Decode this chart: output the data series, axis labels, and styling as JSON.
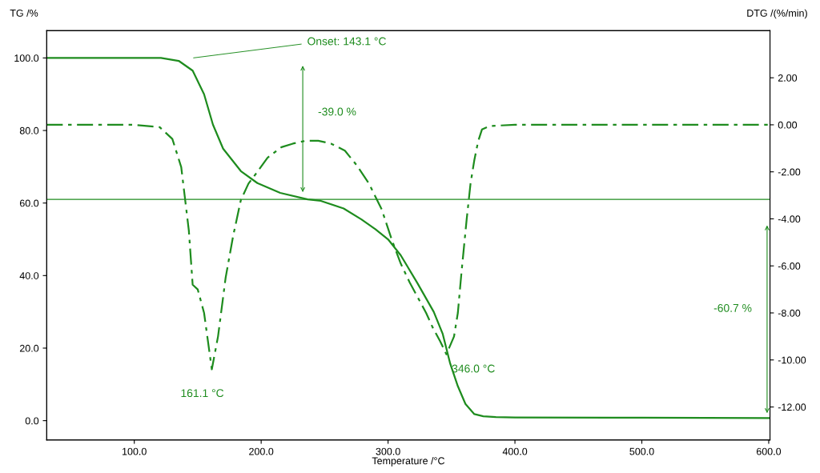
{
  "chart_data": {
    "type": "line",
    "xlabel": "Temperature /°C",
    "ylabel": "TG /%",
    "y2label": "DTG /(%/min)",
    "xlim": [
      31,
      601
    ],
    "ylim": [
      -5.3,
      107.5
    ],
    "y2lim": [
      -13.4,
      4.0
    ],
    "xticks": [
      {
        "value": 100,
        "label": "100.0"
      },
      {
        "value": 200,
        "label": "200.0"
      },
      {
        "value": 300,
        "label": "300.0"
      },
      {
        "value": 400,
        "label": "400.0"
      },
      {
        "value": 500,
        "label": "500.0"
      },
      {
        "value": 600,
        "label": "600.0"
      }
    ],
    "yticks": [
      {
        "value": 0,
        "label": "0.0"
      },
      {
        "value": 20,
        "label": "20.0"
      },
      {
        "value": 40,
        "label": "40.0"
      },
      {
        "value": 60,
        "label": "60.0"
      },
      {
        "value": 80,
        "label": "80.0"
      },
      {
        "value": 100,
        "label": "100.0"
      }
    ],
    "y2ticks": [
      {
        "value": -12,
        "label": "-12.00"
      },
      {
        "value": -10,
        "label": "-10.00"
      },
      {
        "value": -8,
        "label": "-8.00"
      },
      {
        "value": -6,
        "label": "-6.00"
      },
      {
        "value": -4,
        "label": "-4.00"
      },
      {
        "value": -2,
        "label": "-2.00"
      },
      {
        "value": 0,
        "label": "0.00"
      },
      {
        "value": 2,
        "label": "2.00"
      }
    ],
    "grid": false,
    "legend": false,
    "series": [
      {
        "color": "#1e8c1e",
        "line_style": "solid",
        "x": [
          31,
          121,
          135,
          146,
          155,
          162,
          170,
          184,
          197,
          215,
          236.7,
          247,
          265,
          279,
          290,
          300,
          310,
          323,
          336,
          343,
          349,
          355,
          361,
          368,
          375,
          385,
          400,
          500,
          600
        ],
        "values": [
          100,
          100,
          99.2,
          96.5,
          90,
          81.6,
          75,
          68.8,
          65.5,
          62.8,
          61,
          60.6,
          58.5,
          55.5,
          52.8,
          50,
          45.6,
          38,
          30,
          24,
          15.7,
          9.5,
          4.6,
          1.8,
          1.2,
          1.0,
          0.9,
          0.8,
          0.7
        ]
      },
      {
        "color": "#1e8c1e",
        "line_style": "dashed",
        "axis": "y2",
        "x": [
          31,
          100,
          120,
          130,
          137,
          143,
          146,
          150,
          155,
          161.1,
          166,
          172,
          178,
          184,
          190,
          197,
          205,
          216,
          225,
          235,
          245,
          255,
          266,
          275,
          285,
          295,
          303,
          310,
          317,
          323,
          330,
          335,
          341,
          346,
          352,
          355,
          358,
          362,
          365,
          368,
          371,
          374,
          380,
          400,
          500,
          600
        ],
        "values": [
          0,
          0,
          -0.1,
          -0.6,
          -1.8,
          -4.5,
          -6.8,
          -7.0,
          -8.0,
          -10.4,
          -9.0,
          -6.5,
          -4.7,
          -3.2,
          -2.5,
          -2.0,
          -1.4,
          -0.95,
          -0.8,
          -0.68,
          -0.68,
          -0.8,
          -1.1,
          -1.7,
          -2.5,
          -3.6,
          -4.9,
          -5.9,
          -6.7,
          -7.3,
          -8.0,
          -8.6,
          -9.2,
          -9.76,
          -9.0,
          -8.0,
          -6.2,
          -4.0,
          -2.5,
          -1.5,
          -0.7,
          -0.2,
          -0.05,
          0,
          0,
          0
        ]
      }
    ],
    "ref_lines": [
      {
        "axis": "y",
        "value": 61.0,
        "color": "#1e8c1e"
      }
    ],
    "annotations": [
      "Onset: 143.1 °C",
      "-39.0 %",
      "-60.7 %",
      "161.1 °C",
      "346.0 °C"
    ]
  }
}
